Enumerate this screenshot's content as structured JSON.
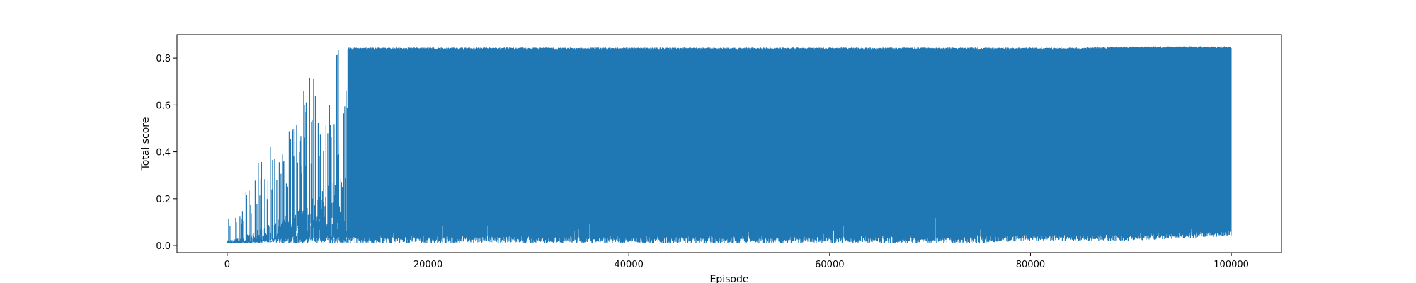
{
  "chart_data": {
    "type": "line",
    "title": "",
    "xlabel": "Episode",
    "ylabel": "Total score",
    "xlim": [
      -5000,
      105000
    ],
    "ylim": [
      -0.03,
      0.9
    ],
    "xticks": [
      0,
      20000,
      40000,
      60000,
      80000,
      100000
    ],
    "xtick_labels": [
      "0",
      "20000",
      "40000",
      "60000",
      "80000",
      "100000"
    ],
    "yticks": [
      0.0,
      0.2,
      0.4,
      0.6,
      0.8
    ],
    "ytick_labels": [
      "0.0",
      "0.2",
      "0.4",
      "0.6",
      "0.8"
    ],
    "grid": false,
    "legend": "none",
    "series": [
      {
        "color": "#1f77b4",
        "envelope": {
          "x": [
            0,
            500,
            1000,
            1500,
            2000,
            2500,
            3000,
            3500,
            4000,
            4500,
            5000,
            5500,
            6000,
            6500,
            7000,
            7500,
            8000,
            8500,
            9000,
            9500,
            10000,
            10500,
            11000,
            11500,
            12000,
            15000,
            20000,
            25000,
            30000,
            35000,
            40000,
            45000,
            50000,
            55000,
            60000,
            65000,
            70000,
            75000,
            80000,
            85000,
            90000,
            95000,
            100000
          ],
          "upper": [
            0.15,
            0.14,
            0.19,
            0.18,
            0.28,
            0.3,
            0.35,
            0.41,
            0.44,
            0.48,
            0.47,
            0.54,
            0.55,
            0.49,
            0.62,
            0.67,
            0.73,
            0.76,
            0.78,
            0.8,
            0.83,
            0.84,
            0.84,
            0.845,
            0.845,
            0.845,
            0.845,
            0.845,
            0.845,
            0.845,
            0.845,
            0.845,
            0.845,
            0.845,
            0.845,
            0.845,
            0.845,
            0.845,
            0.845,
            0.845,
            0.85,
            0.85,
            0.85
          ],
          "lower": [
            0.01,
            0.01,
            0.01,
            0.01,
            0.01,
            0.01,
            0.01,
            0.01,
            0.01,
            0.01,
            0.01,
            0.01,
            0.01,
            0.01,
            0.01,
            0.01,
            0.01,
            0.01,
            0.01,
            0.01,
            0.01,
            0.01,
            0.01,
            0.01,
            0.01,
            0.01,
            0.01,
            0.01,
            0.01,
            0.01,
            0.01,
            0.01,
            0.01,
            0.01,
            0.01,
            0.01,
            0.01,
            0.01,
            0.02,
            0.02,
            0.02,
            0.03,
            0.04
          ],
          "lower_spikes_max": [
            0.01,
            0.01,
            0.02,
            0.03,
            0.03,
            0.04,
            0.05,
            0.06,
            0.07,
            0.08,
            0.09,
            0.1,
            0.1,
            0.1,
            0.1,
            0.11,
            0.11,
            0.12,
            0.12,
            0.12,
            0.12,
            0.13,
            0.13,
            0.13,
            0.13,
            0.13,
            0.13,
            0.13,
            0.13,
            0.13,
            0.13,
            0.13,
            0.13,
            0.13,
            0.13,
            0.13,
            0.13,
            0.13,
            0.13,
            0.13,
            0.13,
            0.13,
            0.13
          ]
        }
      }
    ]
  }
}
